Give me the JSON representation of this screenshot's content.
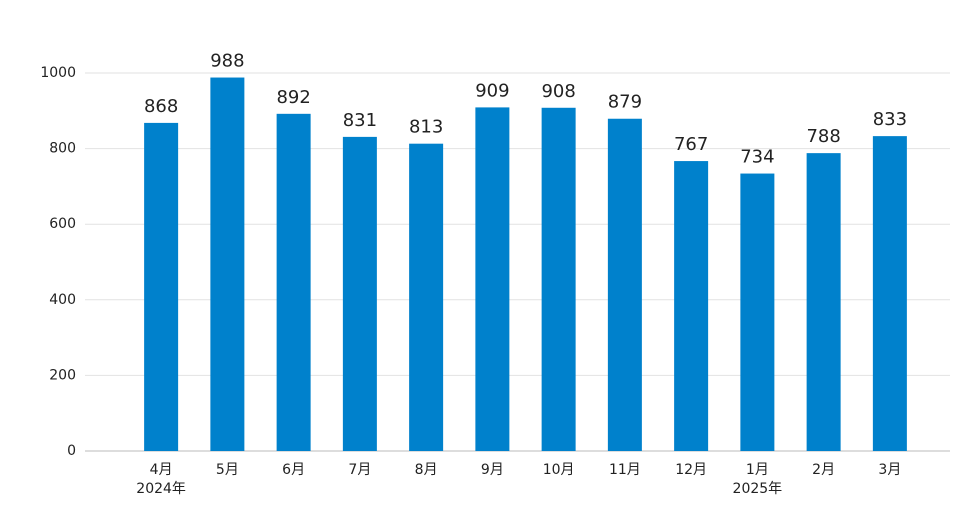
{
  "chart_data": {
    "type": "bar",
    "categories": [
      "4月",
      "5月",
      "6月",
      "7月",
      "8月",
      "9月",
      "10月",
      "11月",
      "12月",
      "1月",
      "2月",
      "3月"
    ],
    "category_sublabels": [
      "2024年",
      null,
      null,
      null,
      null,
      null,
      null,
      null,
      null,
      "2025年",
      null,
      null
    ],
    "values": [
      868,
      988,
      892,
      831,
      813,
      909,
      908,
      879,
      767,
      734,
      788,
      833
    ],
    "color": "#0081cc",
    "ylim": [
      0,
      1000
    ],
    "yticks": [
      0,
      200,
      400,
      600,
      800,
      1000
    ],
    "grid": true
  }
}
